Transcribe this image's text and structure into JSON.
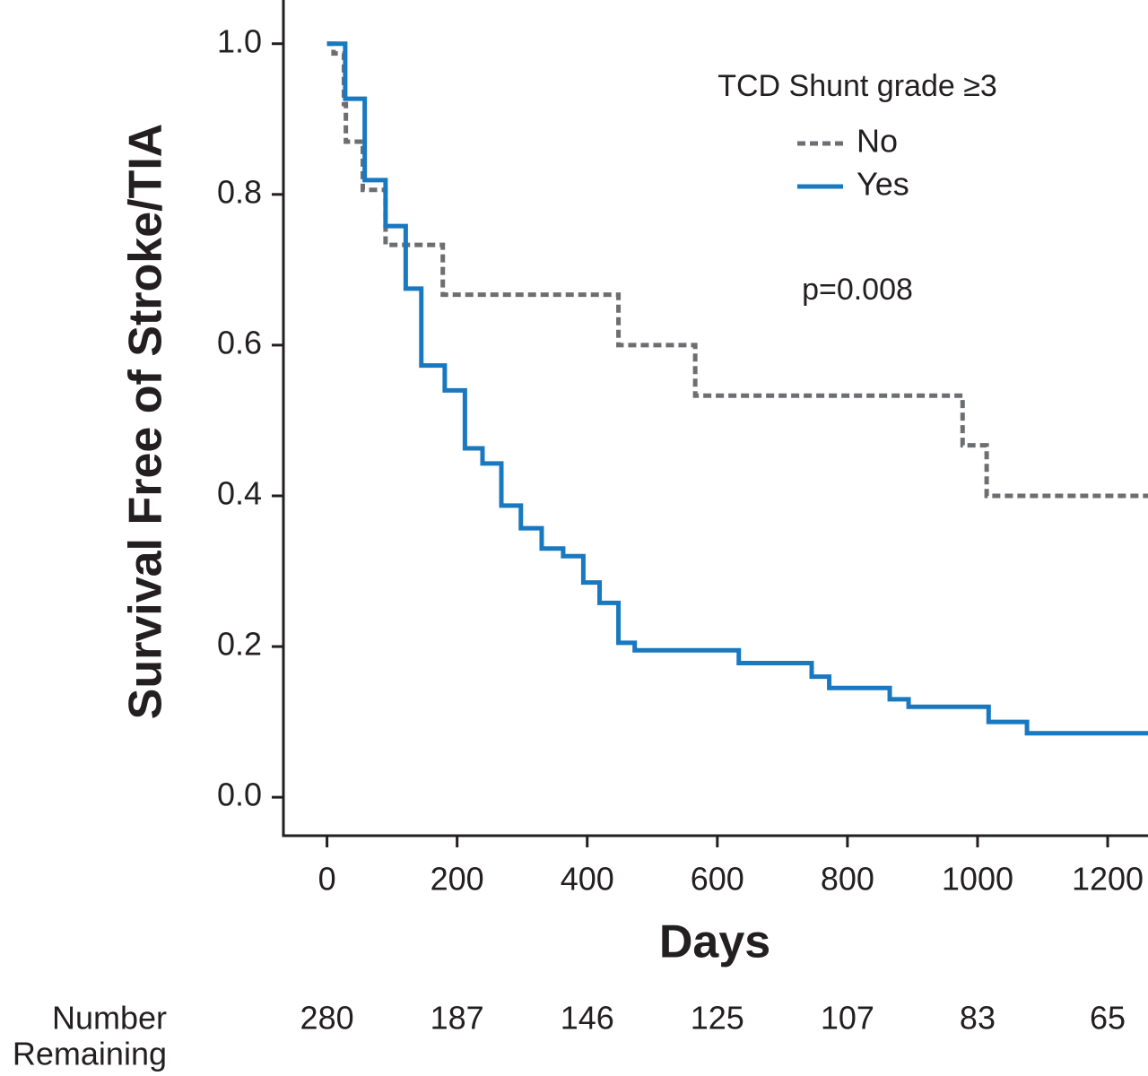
{
  "chart_data": {
    "type": "step",
    "xlabel": "Days",
    "ylabel": "Survival Free of Stroke/TIA",
    "legend_title": "TCD Shunt grade ≥3",
    "annotation": "p=0.008",
    "xlim": [
      -67,
      1262
    ],
    "ylim": [
      -0.051,
      1.058
    ],
    "xticks": [
      0,
      200,
      400,
      600,
      800,
      1000,
      1200
    ],
    "yticks": [
      {
        "value": 0,
        "label": "0.0"
      },
      {
        "value": 0.2,
        "label": "0.2"
      },
      {
        "value": 0.4,
        "label": "0.4"
      },
      {
        "value": 0.6,
        "label": "0.6"
      },
      {
        "value": 0.8,
        "label": "0.8"
      },
      {
        "value": 1,
        "label": "1.0"
      }
    ],
    "series": [
      {
        "name": "No",
        "color": "#6d6e71",
        "dash": true,
        "x": [
          0,
          10,
          26,
          29,
          55,
          90,
          178,
          448,
          566,
          977,
          1014,
          1262
        ],
        "values": [
          1.0,
          0.987,
          0.92,
          0.87,
          0.806,
          0.733,
          0.667,
          0.6,
          0.533,
          0.467,
          0.4,
          0.4
        ]
      },
      {
        "name": "Yes",
        "color": "#1878c0",
        "dash": false,
        "x": [
          0,
          28,
          58,
          90,
          121,
          145,
          181,
          212,
          239,
          268,
          298,
          330,
          363,
          394,
          419,
          448,
          473,
          633,
          745,
          772,
          865,
          894,
          1017,
          1076,
          1262
        ],
        "values": [
          1.0,
          0.927,
          0.819,
          0.758,
          0.675,
          0.573,
          0.54,
          0.463,
          0.443,
          0.387,
          0.357,
          0.33,
          0.32,
          0.285,
          0.258,
          0.205,
          0.195,
          0.178,
          0.16,
          0.145,
          0.13,
          0.12,
          0.1,
          0.085,
          0.085
        ]
      }
    ],
    "risk_table": {
      "label": [
        "Number",
        "Remaining"
      ],
      "values": [
        280,
        187,
        146,
        125,
        107,
        83,
        65
      ]
    }
  }
}
